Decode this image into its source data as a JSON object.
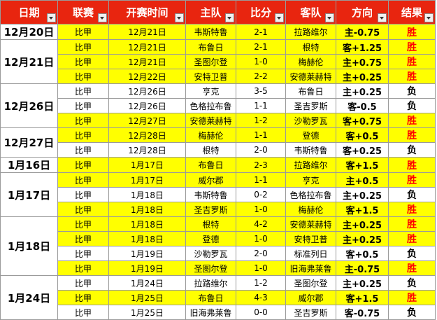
{
  "table": {
    "header": [
      "日期",
      "联赛",
      "开赛时间",
      "主队",
      "比分",
      "客队",
      "方向",
      "结果"
    ],
    "groups": [
      {
        "date": "12月20日",
        "rows": [
          {
            "cells": [
              "比甲",
              "12月21日",
              "韦斯特鲁",
              "2-1",
              "拉路维尔",
              "主-0.75",
              "胜"
            ],
            "color": "#ffff00",
            "result_color": "#ff0000"
          }
        ]
      },
      {
        "date": "12月21日",
        "rows": [
          {
            "cells": [
              "比甲",
              "12月21日",
              "布鲁日",
              "2-1",
              "根特",
              "客+1.25",
              "胜"
            ],
            "color": "#ffff00",
            "result_color": "#ff0000"
          },
          {
            "cells": [
              "比甲",
              "12月21日",
              "圣图尔登",
              "1-0",
              "梅赫伦",
              "主+0.75",
              "胜"
            ],
            "color": "#ffff00",
            "result_color": "#ff0000"
          },
          {
            "cells": [
              "比甲",
              "12月22日",
              "安特卫普",
              "2-2",
              "安德莱赫特",
              "主+0.25",
              "胜"
            ],
            "color": "#ffff00",
            "result_color": "#ff0000"
          }
        ]
      },
      {
        "date": "12月26日",
        "rows": [
          {
            "cells": [
              "比甲",
              "12月26日",
              "亨克",
              "3-5",
              "布鲁日",
              "主+0.25",
              "负"
            ],
            "color": "#ffffff",
            "result_color": "#000000"
          },
          {
            "cells": [
              "比甲",
              "12月26日",
              "色格拉布鲁",
              "1-1",
              "圣吉罗斯",
              "客-0.5",
              "负"
            ],
            "color": "#ffffff",
            "result_color": "#000000"
          },
          {
            "cells": [
              "比甲",
              "12月27日",
              "安德莱赫特",
              "1-2",
              "沙勒罗瓦",
              "客+0.75",
              "胜"
            ],
            "color": "#ffff00",
            "result_color": "#ff0000"
          }
        ]
      },
      {
        "date": "12月27日",
        "rows": [
          {
            "cells": [
              "比甲",
              "12月28日",
              "梅赫伦",
              "1-1",
              "登德",
              "客+0.5",
              "胜"
            ],
            "color": "#ffff00",
            "result_color": "#ff0000"
          },
          {
            "cells": [
              "比甲",
              "12月28日",
              "根特",
              "2-0",
              "韦斯特鲁",
              "客+0.25",
              "负"
            ],
            "color": "#ffffff",
            "result_color": "#000000"
          }
        ]
      },
      {
        "date": "1月16日",
        "rows": [
          {
            "cells": [
              "比甲",
              "1月17日",
              "布鲁日",
              "2-3",
              "拉路维尔",
              "客+1.5",
              "胜"
            ],
            "color": "#ffff00",
            "result_color": "#ff0000"
          }
        ]
      },
      {
        "date": "1月17日",
        "rows": [
          {
            "cells": [
              "比甲",
              "1月17日",
              "威尔郡",
              "1-1",
              "亨克",
              "主+0.5",
              "胜"
            ],
            "color": "#ffff00",
            "result_color": "#ff0000"
          },
          {
            "cells": [
              "比甲",
              "1月18日",
              "韦斯特鲁",
              "0-2",
              "色格拉布鲁",
              "主+0.25",
              "负"
            ],
            "color": "#ffffff",
            "result_color": "#000000"
          },
          {
            "cells": [
              "比甲",
              "1月18日",
              "圣吉罗斯",
              "1-0",
              "梅赫伦",
              "客+1.5",
              "胜"
            ],
            "color": "#ffff00",
            "result_color": "#ff0000"
          }
        ]
      },
      {
        "date": "1月18日",
        "rows": [
          {
            "cells": [
              "比甲",
              "1月18日",
              "根特",
              "4-2",
              "安德莱赫特",
              "主+0.25",
              "胜"
            ],
            "color": "#ffff00",
            "result_color": "#ff0000"
          },
          {
            "cells": [
              "比甲",
              "1月18日",
              "登德",
              "1-0",
              "安特卫普",
              "主+0.25",
              "胜"
            ],
            "color": "#ffff00",
            "result_color": "#ff0000"
          },
          {
            "cells": [
              "比甲",
              "1月19日",
              "沙勒罗瓦",
              "2-0",
              "标准列日",
              "客+0.5",
              "负"
            ],
            "color": "#ffffff",
            "result_color": "#000000"
          },
          {
            "cells": [
              "比甲",
              "1月19日",
              "圣图尔登",
              "1-0",
              "旧海弗莱鲁",
              "主-0.75",
              "胜"
            ],
            "color": "#ffff00",
            "result_color": "#ff0000"
          }
        ]
      },
      {
        "date": "1月24日",
        "rows": [
          {
            "cells": [
              "比甲",
              "1月24日",
              "拉路维尔",
              "1-2",
              "圣图尔登",
              "主+0.25",
              "负"
            ],
            "color": "#ffffff",
            "result_color": "#000000"
          },
          {
            "cells": [
              "比甲",
              "1月25日",
              "布鲁日",
              "4-3",
              "威尔郡",
              "客+1.5",
              "胜"
            ],
            "color": "#ffff00",
            "result_color": "#ff0000"
          },
          {
            "cells": [
              "比甲",
              "1月25日",
              "旧海弗莱鲁",
              "0-0",
              "圣吉罗斯",
              "客-0.75",
              "负"
            ],
            "color": "#ffffff",
            "result_color": "#000000"
          }
        ]
      }
    ]
  }
}
